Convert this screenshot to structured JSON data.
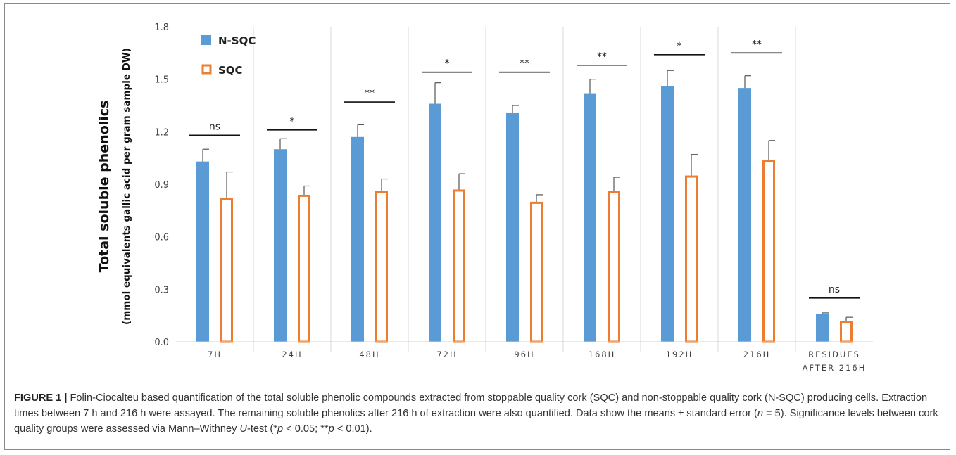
{
  "chart_data": {
    "type": "bar",
    "ylabel": "Total soluble phenolics",
    "ylabel_sub": "(mmol equivalents gallic acid per gram sample DW)",
    "ylim": [
      0,
      1.8
    ],
    "yticks": [
      "0.0",
      "0.3",
      "0.6",
      "0.9",
      "1.2",
      "1.5",
      "1.8"
    ],
    "categories": [
      {
        "lines": [
          "7H"
        ]
      },
      {
        "lines": [
          "24H"
        ]
      },
      {
        "lines": [
          "48H"
        ]
      },
      {
        "lines": [
          "72H"
        ]
      },
      {
        "lines": [
          "96H"
        ]
      },
      {
        "lines": [
          "168H"
        ]
      },
      {
        "lines": [
          "192H"
        ]
      },
      {
        "lines": [
          "216H"
        ]
      },
      {
        "lines": [
          "RESIDUES",
          "AFTER 216H"
        ]
      }
    ],
    "series": [
      {
        "name": "N-SQC",
        "color": "#5b9bd5",
        "style": "filled",
        "values": [
          1.03,
          1.1,
          1.17,
          1.36,
          1.31,
          1.42,
          1.46,
          1.45,
          0.16
        ],
        "errors": [
          0.07,
          0.06,
          0.07,
          0.12,
          0.04,
          0.08,
          0.09,
          0.07,
          0.005
        ]
      },
      {
        "name": "SQC",
        "color": "#ed7d31",
        "style": "outline",
        "values": [
          0.82,
          0.84,
          0.86,
          0.87,
          0.8,
          0.86,
          0.95,
          1.04,
          0.12
        ],
        "errors": [
          0.15,
          0.05,
          0.07,
          0.09,
          0.04,
          0.08,
          0.12,
          0.11,
          0.02
        ]
      }
    ],
    "significance": [
      {
        "label": "ns",
        "y": 1.18
      },
      {
        "label": "*",
        "y": 1.21
      },
      {
        "label": "**",
        "y": 1.37
      },
      {
        "label": "*",
        "y": 1.54
      },
      {
        "label": "**",
        "y": 1.54
      },
      {
        "label": "**",
        "y": 1.58
      },
      {
        "label": "*",
        "y": 1.64
      },
      {
        "label": "**",
        "y": 1.65
      },
      {
        "label": "ns",
        "y": 0.25
      }
    ],
    "legend_position": "top-left",
    "grid": "vertical category separators"
  },
  "caption": {
    "label": "FIGURE 1 |",
    "text_1": " Folin-Ciocalteu based quantification of the total soluble phenolic compounds extracted from stoppable quality cork (SQC) and non-stoppable quality cork (N-SQC) producing cells. Extraction times between 7 h and 216 h were assayed. The remaining soluble phenolics after 216 h of extraction were also quantified. Data show the means ± standard error (",
    "n_var": "n",
    "text_2": " = 5). Significance levels between cork quality groups were assessed via Mann–Withney ",
    "u_var": "U",
    "text_3": "-test (*",
    "p_var_1": "p",
    "text_4": " < 0.05; **",
    "p_var_2": "p",
    "text_5": " < 0.01)."
  }
}
